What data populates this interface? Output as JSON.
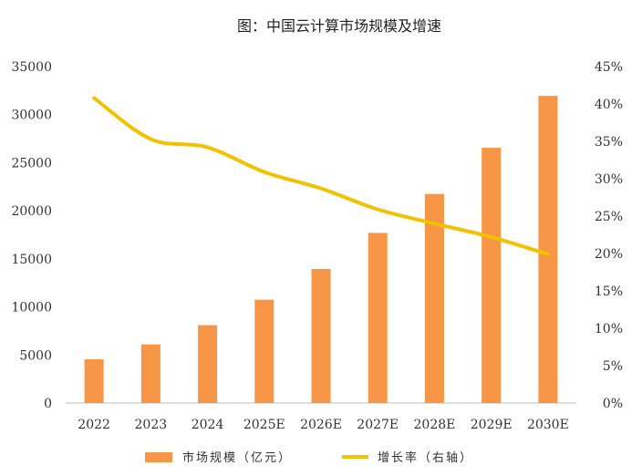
{
  "chart_data": {
    "type": "bar",
    "title": "图：中国云计算市场规模及增速",
    "categories": [
      "2022",
      "2023",
      "2024",
      "2025E",
      "2026E",
      "2027E",
      "2028E",
      "2029E",
      "2030E"
    ],
    "series": [
      {
        "name": "市场规模（亿元）",
        "type": "bar",
        "axis": "left",
        "values": [
          4550,
          6100,
          8100,
          10750,
          13950,
          17700,
          21750,
          26550,
          31950
        ]
      },
      {
        "name": "增长率（右轴）",
        "type": "line",
        "axis": "right",
        "values": [
          0.408,
          0.353,
          0.342,
          0.309,
          0.287,
          0.259,
          0.24,
          0.222,
          0.199
        ]
      }
    ],
    "y_left": {
      "min": 0,
      "max": 35000,
      "ticks": [
        "0",
        "5000",
        "10000",
        "15000",
        "20000",
        "25000",
        "30000",
        "35000"
      ]
    },
    "y_right": {
      "min": 0,
      "max": 0.45,
      "ticks": [
        "0%",
        "5%",
        "10%",
        "15%",
        "20%",
        "25%",
        "30%",
        "35%",
        "40%",
        "45%"
      ]
    },
    "legend_position": "bottom",
    "grid": false,
    "colors": {
      "bar": "#F79646",
      "line": "#F2C200"
    }
  }
}
